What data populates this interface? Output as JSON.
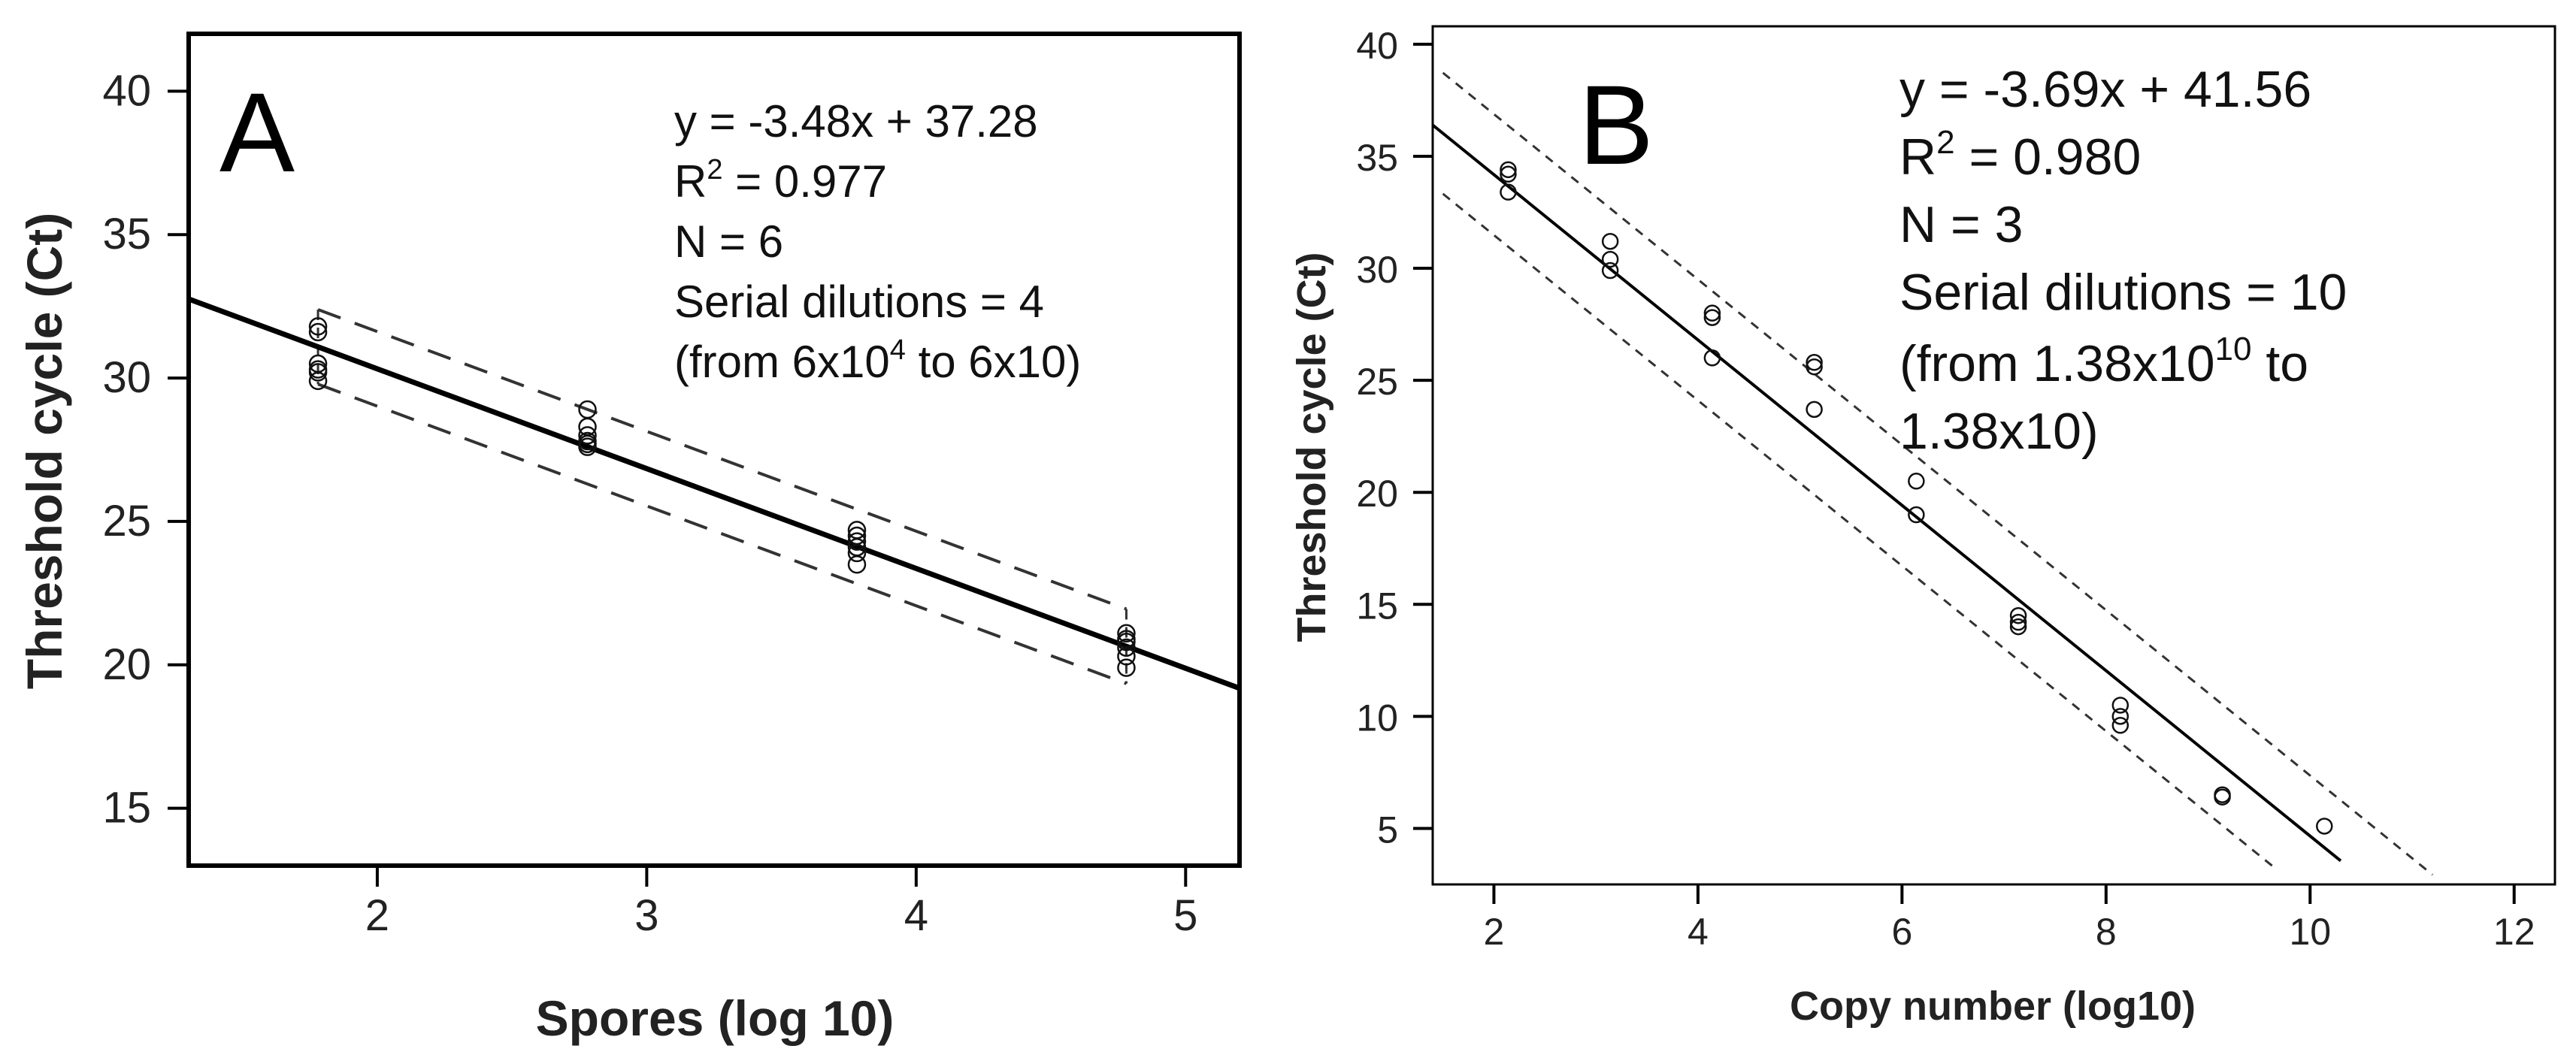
{
  "chart_data": [
    {
      "type": "scatter",
      "panel_label": "A",
      "xlabel": "Spores (log 10)",
      "ylabel": "Threshold cycle (Ct)",
      "xlim": [
        1.3,
        5.2
      ],
      "ylim": [
        13,
        42
      ],
      "xticks": [
        "2",
        "3",
        "4",
        "5"
      ],
      "yticks": [
        "15",
        "20",
        "25",
        "30",
        "35",
        "40"
      ],
      "grid": false,
      "fit": {
        "slope": -3.48,
        "intercept": 37.28,
        "style": "solid"
      },
      "confidence_band": {
        "offset": 1.3,
        "x_range": [
          1.78,
          4.78
        ],
        "style": "dashed"
      },
      "annotations": {
        "line1": "y = -3.48x + 37.28",
        "r2_prefix": "R",
        "r2_sup": "2",
        "r2_rest": " = 0.977",
        "line3": "N = 6",
        "line4": "Serial dilutions = 4",
        "l5a": "(from 6x10",
        "l5sup": "4",
        "l5b": " to 6x10)"
      },
      "series": [
        {
          "name": "Observations",
          "x": [
            1.78,
            1.78,
            1.78,
            1.78,
            1.78,
            1.78,
            2.78,
            2.78,
            2.78,
            2.78,
            2.78,
            2.78,
            3.78,
            3.78,
            3.78,
            3.78,
            3.78,
            3.78,
            4.78,
            4.78,
            4.78,
            4.78,
            4.78,
            4.78
          ],
          "y": [
            31.8,
            31.6,
            30.5,
            30.3,
            30.2,
            29.9,
            28.9,
            28.3,
            28.0,
            27.8,
            27.7,
            27.6,
            24.7,
            24.5,
            24.3,
            24.1,
            23.9,
            23.5,
            21.1,
            20.9,
            20.8,
            20.6,
            20.3,
            19.9
          ]
        }
      ]
    },
    {
      "type": "scatter",
      "panel_label": "B",
      "xlabel": "Copy number (log10)",
      "ylabel": "Threshold cycle (Ct)",
      "xlim": [
        1.4,
        12.4
      ],
      "ylim": [
        2.5,
        40.8
      ],
      "xticks": [
        "2",
        "4",
        "6",
        "8",
        "10",
        "12"
      ],
      "yticks": [
        "5",
        "10",
        "15",
        "20",
        "25",
        "30",
        "35",
        "40"
      ],
      "grid": false,
      "fit": {
        "slope": -3.69,
        "intercept": 41.56,
        "style": "solid"
      },
      "confidence_band": {
        "offset": 2.7,
        "x_range": [
          1.5,
          11.2
        ],
        "style": "dotted"
      },
      "annotations": {
        "line1": "y = -3.69x + 41.56",
        "r2_prefix": "R",
        "r2_sup": "2",
        "r2_rest": " = 0.980",
        "line3": "N = 3",
        "line4": "Serial dilutions = 10",
        "l5a": "(from 1.38x10",
        "l5sup": "10",
        "l5b": " to",
        "line6": "1.38x10)"
      },
      "series": [
        {
          "name": "Observations",
          "x": [
            2.14,
            2.14,
            2.14,
            3.14,
            3.14,
            3.14,
            4.14,
            4.14,
            4.14,
            5.14,
            5.14,
            5.14,
            6.14,
            6.14,
            7.14,
            7.14,
            7.14,
            8.14,
            8.14,
            8.14,
            9.14,
            9.14,
            10.14
          ],
          "y": [
            34.4,
            34.2,
            33.4,
            31.2,
            30.4,
            29.9,
            28.0,
            27.8,
            26.0,
            25.8,
            25.6,
            23.7,
            20.5,
            19.0,
            14.5,
            14.2,
            14.0,
            10.5,
            10.0,
            9.6,
            6.5,
            6.4,
            5.1
          ]
        }
      ]
    }
  ]
}
